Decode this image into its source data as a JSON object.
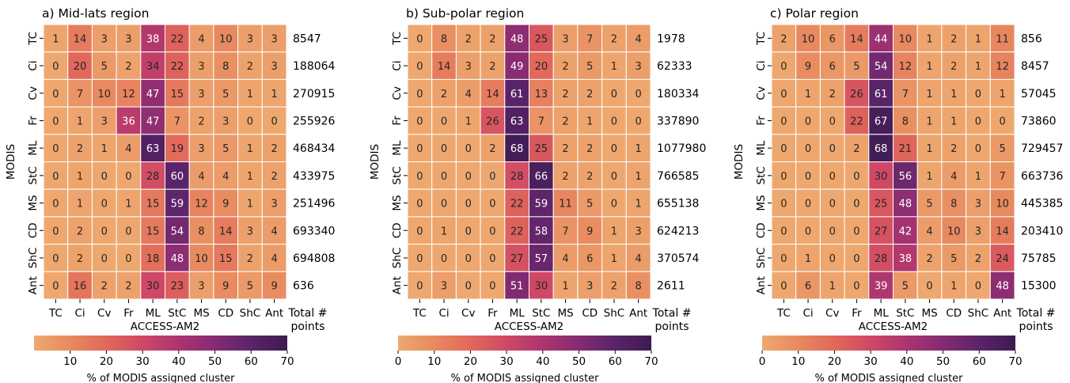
{
  "chart_data": {
    "type": "heatmap",
    "x_categories": [
      "TC",
      "Ci",
      "Cv",
      "Fr",
      "ML",
      "StC",
      "MS",
      "CD",
      "ShC",
      "Ant"
    ],
    "y_categories": [
      "TC",
      "Ci",
      "Cv",
      "Fr",
      "ML",
      "StC",
      "MS",
      "CD",
      "ShC",
      "Ant"
    ],
    "xlabel": "ACCESS-AM2",
    "ylabel": "MODIS",
    "totals_label_line1": "Total #",
    "totals_label_line2": "points",
    "colorbar_label": "% of MODIS assigned cluster",
    "colormap": "flare",
    "colormap_stops": [
      "#eea86f",
      "#e88a5f",
      "#e2685a",
      "#cf4866",
      "#ac3470",
      "#852b72",
      "#5b246a",
      "#3d1b52"
    ],
    "color_range": [
      0,
      70
    ],
    "panels": [
      {
        "title": "a) Mid-lats region",
        "colorbar_ticks": [
          "10",
          "20",
          "30",
          "40",
          "50",
          "60",
          "70"
        ],
        "values": [
          [
            1,
            14,
            3,
            3,
            38,
            22,
            4,
            10,
            3,
            3
          ],
          [
            0,
            20,
            5,
            2,
            34,
            22,
            3,
            8,
            2,
            3
          ],
          [
            0,
            7,
            10,
            12,
            47,
            15,
            3,
            5,
            1,
            1
          ],
          [
            0,
            1,
            3,
            36,
            47,
            7,
            2,
            3,
            0,
            0
          ],
          [
            0,
            2,
            1,
            4,
            63,
            19,
            3,
            5,
            1,
            2
          ],
          [
            0,
            1,
            0,
            0,
            28,
            60,
            4,
            4,
            1,
            2
          ],
          [
            0,
            1,
            0,
            1,
            15,
            59,
            12,
            9,
            1,
            3
          ],
          [
            0,
            2,
            0,
            0,
            15,
            54,
            8,
            14,
            3,
            4
          ],
          [
            0,
            2,
            0,
            0,
            18,
            48,
            10,
            15,
            2,
            4
          ],
          [
            0,
            16,
            2,
            2,
            30,
            23,
            3,
            9,
            5,
            9
          ]
        ],
        "totals": [
          "8547",
          "188064",
          "270915",
          "255926",
          "468434",
          "433975",
          "251496",
          "693340",
          "694808",
          "636"
        ]
      },
      {
        "title": "b) Sub-polar region",
        "colorbar_ticks": [
          "0",
          "10",
          "20",
          "30",
          "40",
          "50",
          "60",
          "70"
        ],
        "values": [
          [
            0,
            8,
            2,
            2,
            48,
            25,
            3,
            7,
            2,
            4
          ],
          [
            0,
            14,
            3,
            2,
            49,
            20,
            2,
            5,
            1,
            3
          ],
          [
            0,
            2,
            4,
            14,
            61,
            13,
            2,
            2,
            0,
            0
          ],
          [
            0,
            0,
            1,
            26,
            63,
            7,
            2,
            1,
            0,
            0
          ],
          [
            0,
            0,
            0,
            2,
            68,
            25,
            2,
            2,
            0,
            1
          ],
          [
            0,
            0,
            0,
            0,
            28,
            66,
            2,
            2,
            0,
            1
          ],
          [
            0,
            0,
            0,
            0,
            22,
            59,
            11,
            5,
            0,
            1
          ],
          [
            0,
            1,
            0,
            0,
            22,
            58,
            7,
            9,
            1,
            3
          ],
          [
            0,
            0,
            0,
            0,
            27,
            57,
            4,
            6,
            1,
            4
          ],
          [
            0,
            3,
            0,
            0,
            51,
            30,
            1,
            3,
            2,
            8
          ]
        ],
        "totals": [
          "1978",
          "62333",
          "180334",
          "337890",
          "1077980",
          "766585",
          "655138",
          "624213",
          "370574",
          "2611"
        ]
      },
      {
        "title": "c) Polar region",
        "colorbar_ticks": [
          "0",
          "10",
          "20",
          "30",
          "40",
          "50",
          "60",
          "70"
        ],
        "values": [
          [
            2,
            10,
            6,
            14,
            44,
            10,
            1,
            2,
            1,
            11
          ],
          [
            0,
            9,
            6,
            5,
            54,
            12,
            1,
            2,
            1,
            12
          ],
          [
            0,
            1,
            2,
            26,
            61,
            7,
            1,
            1,
            0,
            1
          ],
          [
            0,
            0,
            0,
            22,
            67,
            8,
            1,
            1,
            0,
            0
          ],
          [
            0,
            0,
            0,
            2,
            68,
            21,
            1,
            2,
            0,
            5
          ],
          [
            0,
            0,
            0,
            0,
            30,
            56,
            1,
            4,
            1,
            7
          ],
          [
            0,
            0,
            0,
            0,
            25,
            48,
            5,
            8,
            3,
            10
          ],
          [
            0,
            0,
            0,
            0,
            27,
            42,
            4,
            10,
            3,
            14
          ],
          [
            0,
            1,
            0,
            0,
            28,
            38,
            2,
            5,
            2,
            24
          ],
          [
            0,
            6,
            1,
            0,
            39,
            5,
            0,
            1,
            0,
            48
          ]
        ],
        "totals": [
          "856",
          "8457",
          "57045",
          "73860",
          "729457",
          "663736",
          "445385",
          "203410",
          "75785",
          "15300"
        ]
      }
    ]
  }
}
